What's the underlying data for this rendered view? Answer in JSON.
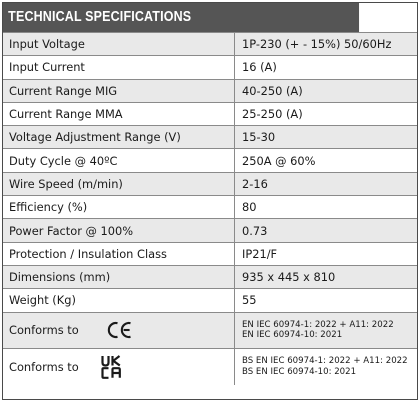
{
  "header": {
    "title": "TECHNICAL SPECIFICATIONS"
  },
  "specs": [
    {
      "label": "Input Voltage",
      "value": "1P-230 (+ - 15%) 50/60Hz"
    },
    {
      "label": "Input Current",
      "value": "16 (A)"
    },
    {
      "label": "Current Range MIG",
      "value": "40-250 (A)"
    },
    {
      "label": "Current Range MMA",
      "value": "25-250 (A)"
    },
    {
      "label": "Voltage Adjustment Range (V)",
      "value": "15-30"
    },
    {
      "label": "Duty Cycle @ 40ºC",
      "value": "250A @ 60%"
    },
    {
      "label": "Wire Speed (m/min)",
      "value": "2-16"
    },
    {
      "label": "Efficiency (%)",
      "value": "80"
    },
    {
      "label": "Power Factor @ 100%",
      "value": "0.73"
    },
    {
      "label": "Protection / Insulation Class",
      "value": "IP21/F"
    },
    {
      "label": "Dimensions (mm)",
      "value": "935 x 445 x 810"
    },
    {
      "label": "Weight (Kg)",
      "value": "55"
    }
  ],
  "conformity": [
    {
      "label": "Conforms to",
      "mark": "CE",
      "mark_icon": "ce-mark-icon",
      "lines": [
        "EN IEC 60974-1: 2022 + A11: 2022",
        "EN IEC 60974-10: 2021"
      ]
    },
    {
      "label": "Conforms to",
      "mark": "UKCA",
      "mark_icon": "ukca-mark-icon",
      "lines": [
        "BS EN IEC 60974-1: 2022 + A11: 2022",
        "BS EN IEC 60974-10: 2021"
      ]
    }
  ],
  "colors": {
    "header_bg": "#555555",
    "alt_row": "#e9e9e9",
    "border": "#8a8a8a"
  }
}
